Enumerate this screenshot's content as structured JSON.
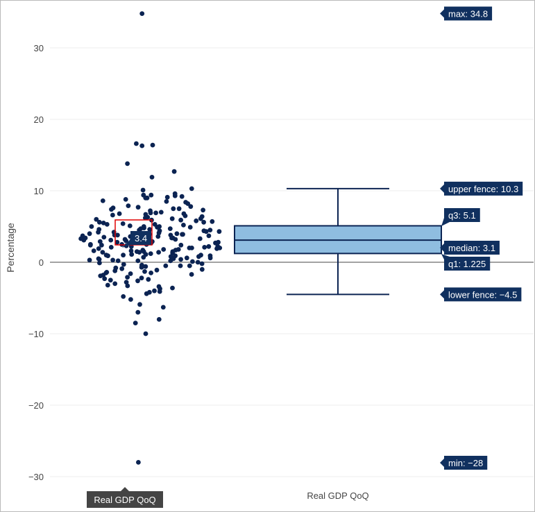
{
  "chart_data": {
    "type": "box",
    "ylabel": "Percentage",
    "xlabel": "",
    "ylim": [
      -33.5,
      36.5
    ],
    "yticks": [
      -30,
      -20,
      -10,
      0,
      10,
      20,
      30
    ],
    "ytick_labels": [
      "−30",
      "−20",
      "−10",
      "0",
      "10",
      "20",
      "30"
    ],
    "grid": true,
    "categories": [
      "Real GDP QoQ"
    ],
    "series_name": "Real GDP QoQ",
    "box": {
      "max": 34.8,
      "upper_fence": 10.3,
      "q3": 5.1,
      "median": 3.1,
      "q1": 1.225,
      "lower_fence": -4.5,
      "min": -28
    },
    "hover_labels": [
      {
        "key": "max",
        "text": "max: 34.8",
        "value": 34.8
      },
      {
        "key": "upper_fence",
        "text": "upper fence: 10.3",
        "value": 10.3
      },
      {
        "key": "q3",
        "text": "q3: 5.1",
        "value": 5.1
      },
      {
        "key": "median",
        "text": "median: 3.1",
        "value": 3.1
      },
      {
        "key": "q1",
        "text": "q1: 1.225",
        "value": 1.225
      },
      {
        "key": "lower_fence",
        "text": "lower fence: −4.5",
        "value": -4.5
      },
      {
        "key": "min",
        "text": "min: −28",
        "value": -28
      }
    ],
    "point_hover": {
      "text": "3.4",
      "value": 3.4
    },
    "x_hover_label": "Real GDP QoQ",
    "x_category_label": "Real GDP QoQ",
    "outliers": [
      34.8,
      16.6,
      16.4,
      16.3,
      13.8,
      12.7,
      11.9,
      -28,
      -10,
      -8.5,
      -8,
      -7,
      -6.3
    ],
    "points": [
      7.2,
      5.0,
      4.6,
      3.8,
      3.3,
      2.9,
      2.5,
      2.1,
      1.8,
      1.4,
      1.0,
      0.6,
      0.2,
      -1.5,
      9.4,
      8.8,
      6.1,
      5.3,
      4.4,
      3.9,
      3.5,
      3.1,
      2.7,
      2.2,
      1.9,
      1.5,
      0.9,
      0.3,
      -0.4,
      -1.1,
      9.1,
      7.9,
      6.6,
      5.7,
      4.8,
      4.2,
      3.6,
      3.0,
      2.4,
      2.0,
      1.6,
      1.1,
      0.5,
      -0.2,
      -0.9,
      -1.7,
      -2.4,
      -3.3,
      -4.1,
      10.1,
      9.3,
      8.5,
      7.4,
      6.8,
      6.2,
      5.6,
      5.0,
      4.5,
      4.0,
      3.4,
      2.8,
      2.3,
      1.7,
      1.2,
      0.7,
      0.1,
      -0.6,
      -1.3,
      -2.1,
      -2.8,
      -3.6,
      -4.8,
      -5.9,
      9.6,
      8.2,
      7.3,
      6.4,
      5.8,
      5.2,
      4.7,
      4.1,
      3.7,
      3.2,
      2.6,
      2.1,
      1.5,
      0.9,
      0.4,
      -0.3,
      -1.0,
      -1.9,
      -2.6,
      -3.4,
      -4.4,
      -5.2,
      10.3,
      9.0,
      7.8,
      7.0,
      6.3,
      5.5,
      4.9,
      4.3,
      3.8,
      3.3,
      2.9,
      2.4,
      1.8,
      1.3,
      0.8,
      0.2,
      -0.5,
      -1.2,
      -1.8,
      -2.5,
      -3.2,
      -4.0,
      9.2,
      8.4,
      7.6,
      6.9,
      6.0,
      5.4,
      4.6,
      4.0,
      3.6,
      3.1,
      2.5,
      2.0,
      1.4,
      0.9,
      0.3,
      -0.5,
      -1.4,
      -2.2,
      -3.0,
      -4.2,
      9.4,
      8.6,
      7.5,
      6.7,
      5.9,
      5.1,
      4.5,
      3.9,
      3.4,
      2.8,
      2.2,
      1.6,
      1.0,
      0.4,
      -0.1,
      -0.8,
      -1.6,
      -2.3,
      -3.7,
      9.0,
      7.7,
      6.9,
      6.1,
      5.3,
      4.7,
      4.2,
      3.7,
      3.2,
      2.7,
      2.2,
      1.7,
      1.1,
      0.6,
      0.0,
      -0.7,
      -1.5,
      7.5,
      6.5,
      5.6,
      4.9,
      4.3,
      3.8,
      3.3,
      2.9,
      2.4,
      1.9,
      1.4,
      0.8,
      0.2,
      -0.5,
      6.8,
      5.9,
      5.0,
      4.4,
      3.9,
      3.4,
      3.0,
      2.5,
      2.0,
      1.5,
      1.0,
      0.5
    ]
  }
}
